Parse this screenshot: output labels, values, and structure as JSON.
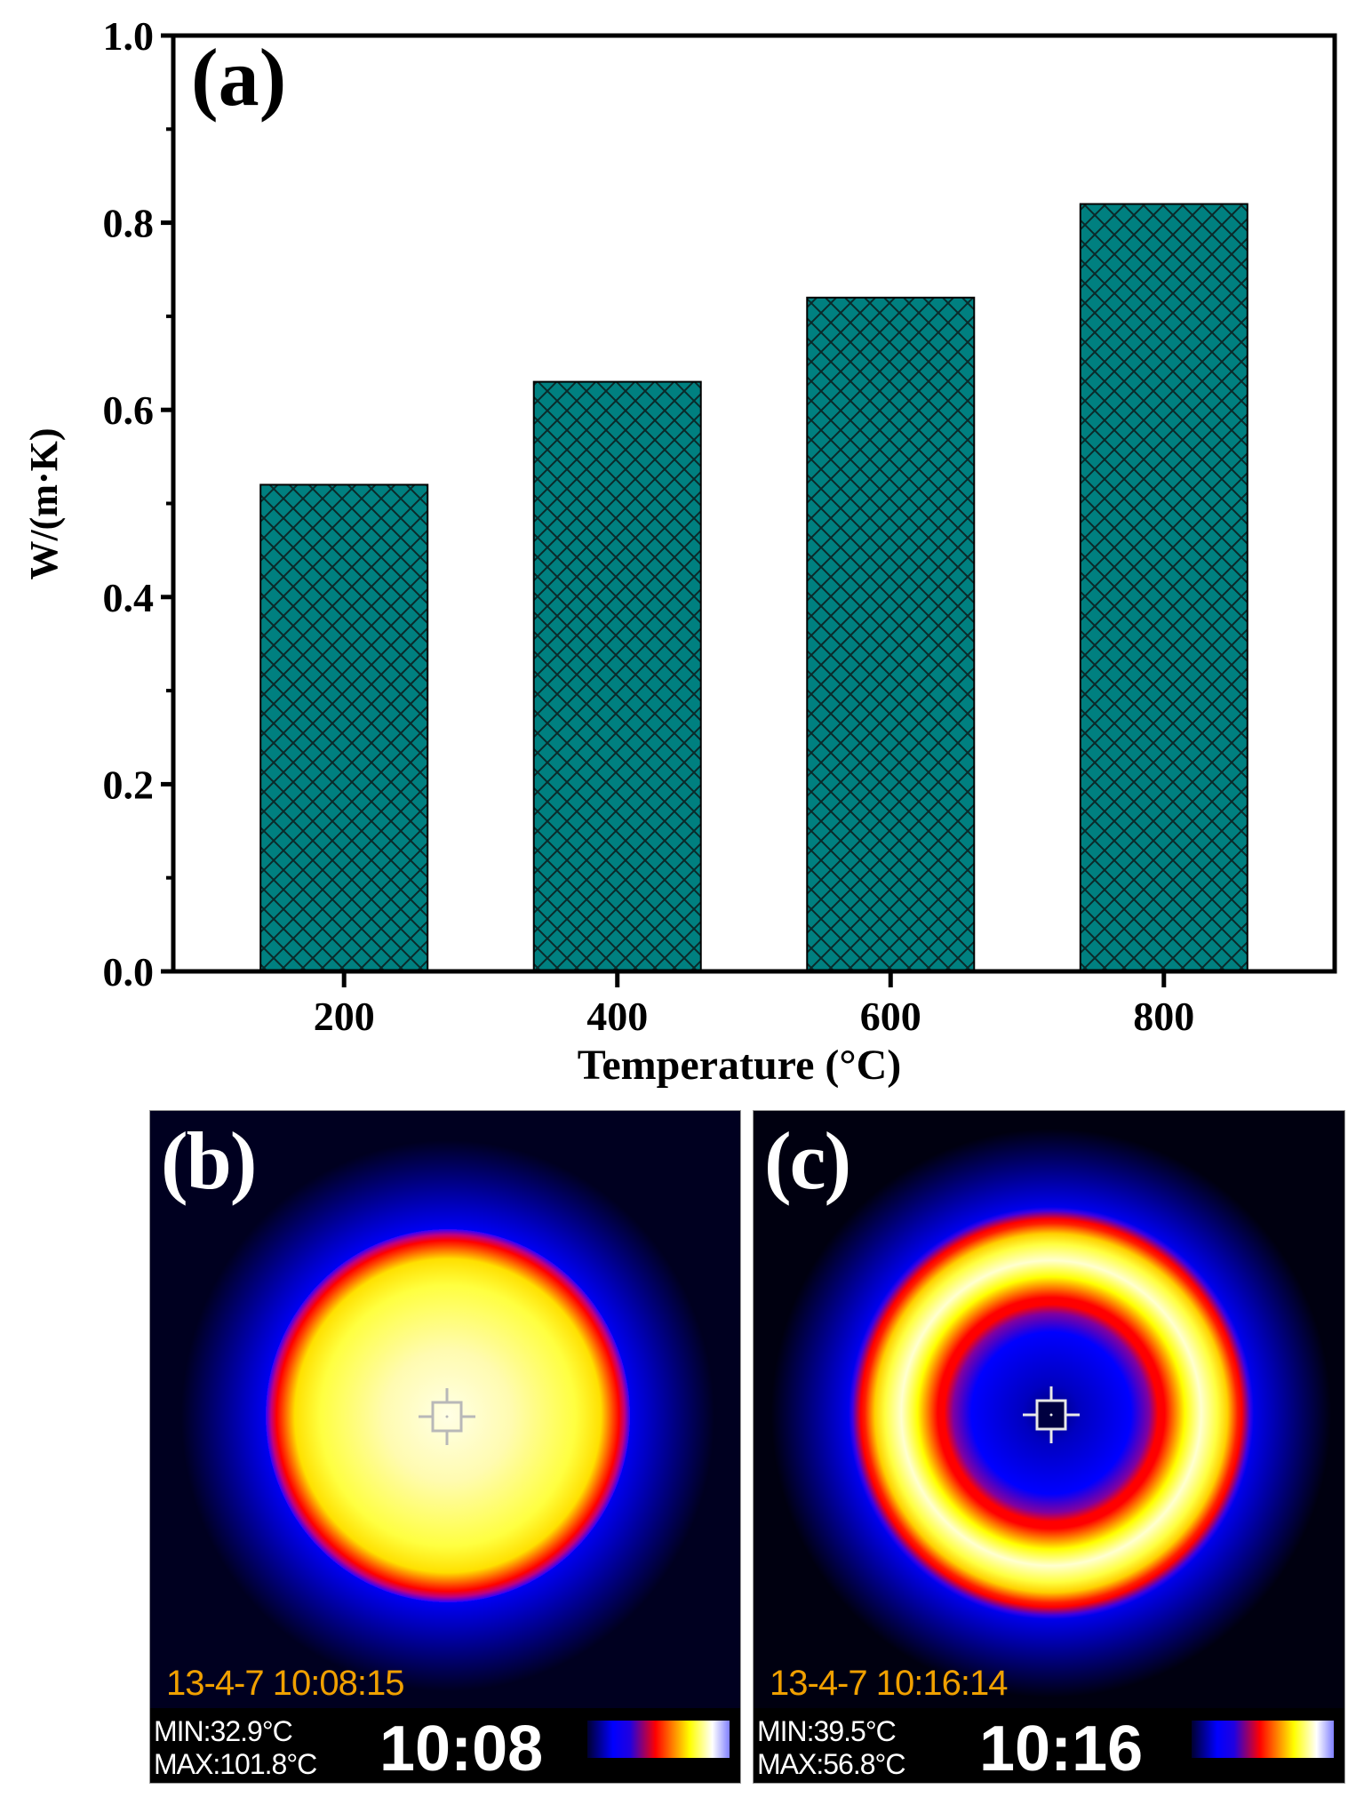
{
  "chart_data": {
    "type": "bar",
    "panel_label": "(a)",
    "categories": [
      "200",
      "400",
      "600",
      "800"
    ],
    "x_values": [
      200,
      400,
      600,
      800
    ],
    "values": [
      0.52,
      0.63,
      0.72,
      0.82
    ],
    "title": "",
    "xlabel": "Temperature (°C)",
    "ylabel": "W/(m·K)",
    "ylim": [
      0.0,
      1.0
    ],
    "xlim": [
      75,
      925
    ],
    "yticks": [
      0.0,
      0.2,
      0.4,
      0.6,
      0.8,
      1.0
    ],
    "ytick_labels": [
      "0.0",
      "0.2",
      "0.4",
      "0.6",
      "0.8",
      "1.0"
    ],
    "minor_yticks": [
      0.1,
      0.3,
      0.5,
      0.7,
      0.9
    ],
    "grid": false,
    "legend": "none",
    "bar_color": "#008080",
    "bar_pattern": "crosshatch"
  },
  "thermal_images": [
    {
      "panel_label": "(b)",
      "pattern": "disk",
      "timestamp": "13-4-7 10:08:15",
      "min_text": "MIN:32.9°C",
      "max_text": "MAX:101.8°C",
      "clock": "10:08",
      "min_c": 32.9,
      "max_c": 101.8
    },
    {
      "panel_label": "(c)",
      "pattern": "ring",
      "timestamp": "13-4-7 10:16:14",
      "min_text": "MIN:39.5°C",
      "max_text": "MAX:56.8°C",
      "clock": "10:16",
      "min_c": 39.5,
      "max_c": 56.8
    }
  ],
  "colors": {
    "bar": "#008080",
    "hatch": "#0a2a2a",
    "stamp": "#f0a000",
    "thermal_cold": "#0000ff",
    "thermal_mid": "#ff0000",
    "thermal_hot": "#ffff00",
    "thermal_max": "#ffffff"
  }
}
